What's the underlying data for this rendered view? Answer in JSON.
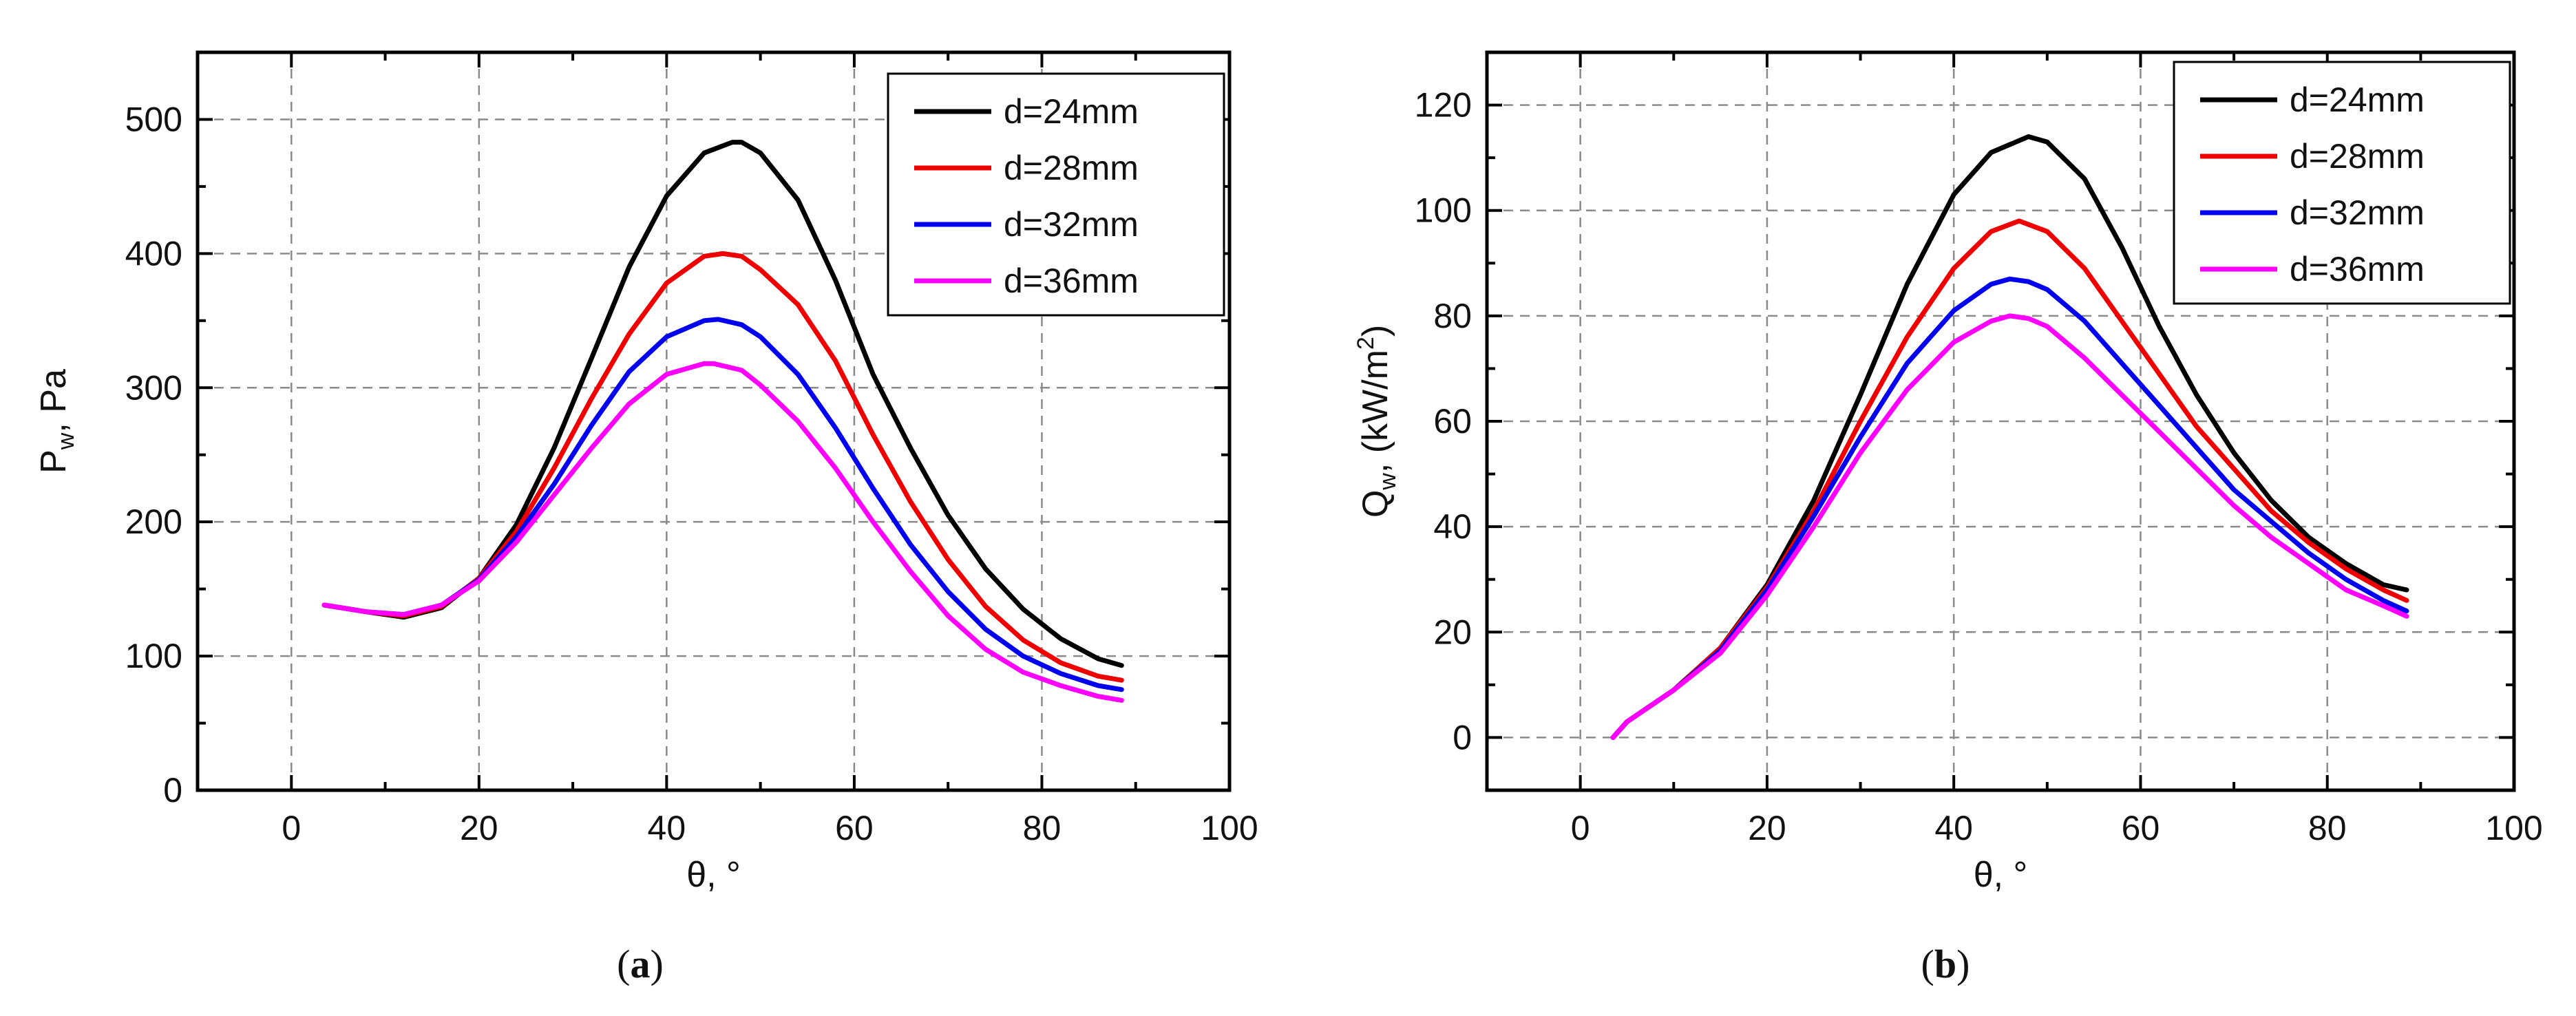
{
  "chart_data": [
    {
      "type": "line",
      "panel_label": "(a)",
      "panel_letter": "a",
      "xlabel": "θ, °",
      "ylabel_main": "P",
      "ylabel_sub": "w",
      "ylabel_rest": ", Pa",
      "xlim": [
        -10,
        100
      ],
      "ylim": [
        0,
        550
      ],
      "xticks": [
        0,
        20,
        40,
        60,
        80,
        100
      ],
      "yticks": [
        0,
        100,
        200,
        300,
        400,
        500
      ],
      "grid": true,
      "legend_position": "top-right",
      "series": [
        {
          "name": "d=24mm",
          "color": "#000000",
          "x": [
            3.5,
            8,
            12,
            16,
            20,
            24,
            28,
            32,
            36,
            40,
            44,
            47,
            48,
            50,
            54,
            58,
            62,
            66,
            70,
            74,
            78,
            82,
            86,
            88.5
          ],
          "y": [
            138,
            133,
            129,
            136,
            158,
            198,
            255,
            322,
            390,
            443,
            475,
            483,
            483,
            475,
            440,
            380,
            310,
            255,
            205,
            165,
            135,
            113,
            98,
            93
          ]
        },
        {
          "name": "d=28mm",
          "color": "#ee0000",
          "x": [
            3.5,
            8,
            12,
            16,
            20,
            24,
            28,
            32,
            36,
            40,
            44,
            46,
            48,
            50,
            54,
            58,
            62,
            66,
            70,
            74,
            78,
            82,
            86,
            88.5
          ],
          "y": [
            138,
            133,
            130,
            137,
            158,
            193,
            240,
            292,
            340,
            378,
            398,
            400,
            398,
            388,
            362,
            320,
            265,
            215,
            172,
            137,
            112,
            95,
            85,
            82
          ]
        },
        {
          "name": "d=32mm",
          "color": "#0000ee",
          "x": [
            3.5,
            8,
            12,
            16,
            20,
            24,
            28,
            32,
            36,
            40,
            44,
            45.5,
            48,
            50,
            54,
            58,
            62,
            66,
            70,
            74,
            78,
            82,
            86,
            88.5
          ],
          "y": [
            138,
            133,
            131,
            138,
            157,
            189,
            228,
            272,
            312,
            338,
            350,
            351,
            347,
            338,
            310,
            270,
            225,
            183,
            148,
            120,
            100,
            87,
            78,
            75
          ]
        },
        {
          "name": "d=36mm",
          "color": "#ff00ff",
          "x": [
            3.5,
            8,
            12,
            16,
            20,
            24,
            28,
            32,
            36,
            40,
            44,
            45,
            48,
            50,
            54,
            58,
            62,
            66,
            70,
            74,
            78,
            82,
            86,
            88.5
          ],
          "y": [
            138,
            133,
            131,
            138,
            156,
            185,
            220,
            255,
            288,
            310,
            318,
            318,
            313,
            302,
            275,
            240,
            200,
            163,
            130,
            105,
            88,
            78,
            70,
            67
          ]
        }
      ]
    },
    {
      "type": "line",
      "panel_label": "(b)",
      "panel_letter": "b",
      "xlabel": "θ, °",
      "ylabel_main": "Q",
      "ylabel_sub": "w",
      "ylabel_rest": ", (kW/m",
      "ylabel_sup": "2",
      "ylabel_end": ")",
      "xlim": [
        -10,
        100
      ],
      "ylim": [
        -10,
        130
      ],
      "xticks": [
        0,
        20,
        40,
        60,
        80,
        100
      ],
      "yticks": [
        0,
        20,
        40,
        60,
        80,
        100,
        120
      ],
      "grid": true,
      "legend_position": "top-right",
      "series": [
        {
          "name": "d=24mm",
          "color": "#000000",
          "x": [
            3.5,
            5,
            10,
            15,
            20,
            25,
            30,
            35,
            40,
            44,
            48,
            50,
            54,
            58,
            62,
            66,
            70,
            74,
            78,
            82,
            86,
            88.5
          ],
          "y": [
            0,
            3,
            9,
            17,
            29,
            45,
            65,
            86,
            103,
            111,
            114,
            113,
            106,
            93,
            78,
            65,
            54,
            45,
            38,
            33,
            29,
            28
          ]
        },
        {
          "name": "d=28mm",
          "color": "#ee0000",
          "x": [
            3.5,
            5,
            10,
            15,
            20,
            25,
            30,
            35,
            40,
            44,
            47,
            50,
            54,
            58,
            62,
            66,
            70,
            74,
            78,
            82,
            86,
            88.5
          ],
          "y": [
            0,
            3,
            9,
            17,
            28.5,
            43,
            60,
            76,
            89,
            96,
            98,
            96,
            89,
            79,
            69,
            59,
            51,
            43,
            37,
            32,
            28,
            26
          ]
        },
        {
          "name": "d=32mm",
          "color": "#0000ee",
          "x": [
            3.5,
            5,
            10,
            15,
            20,
            25,
            30,
            35,
            40,
            44,
            46,
            48,
            50,
            54,
            58,
            62,
            66,
            70,
            74,
            78,
            82,
            86,
            88.5
          ],
          "y": [
            0,
            3,
            9,
            16.5,
            28,
            42,
            57,
            71,
            81,
            86,
            87,
            86.5,
            85,
            79,
            71,
            63,
            55,
            47,
            41,
            35,
            30,
            26,
            24
          ]
        },
        {
          "name": "d=36mm",
          "color": "#ff00ff",
          "x": [
            3.5,
            5,
            10,
            15,
            20,
            25,
            30,
            35,
            40,
            44,
            46,
            48,
            50,
            54,
            58,
            62,
            66,
            70,
            74,
            78,
            82,
            86,
            88.5
          ],
          "y": [
            0,
            3,
            9,
            16,
            27,
            40,
            54,
            66,
            75,
            79,
            80,
            79.5,
            78,
            72,
            65,
            58,
            51,
            44,
            38,
            33,
            28,
            25,
            23
          ]
        }
      ]
    }
  ]
}
